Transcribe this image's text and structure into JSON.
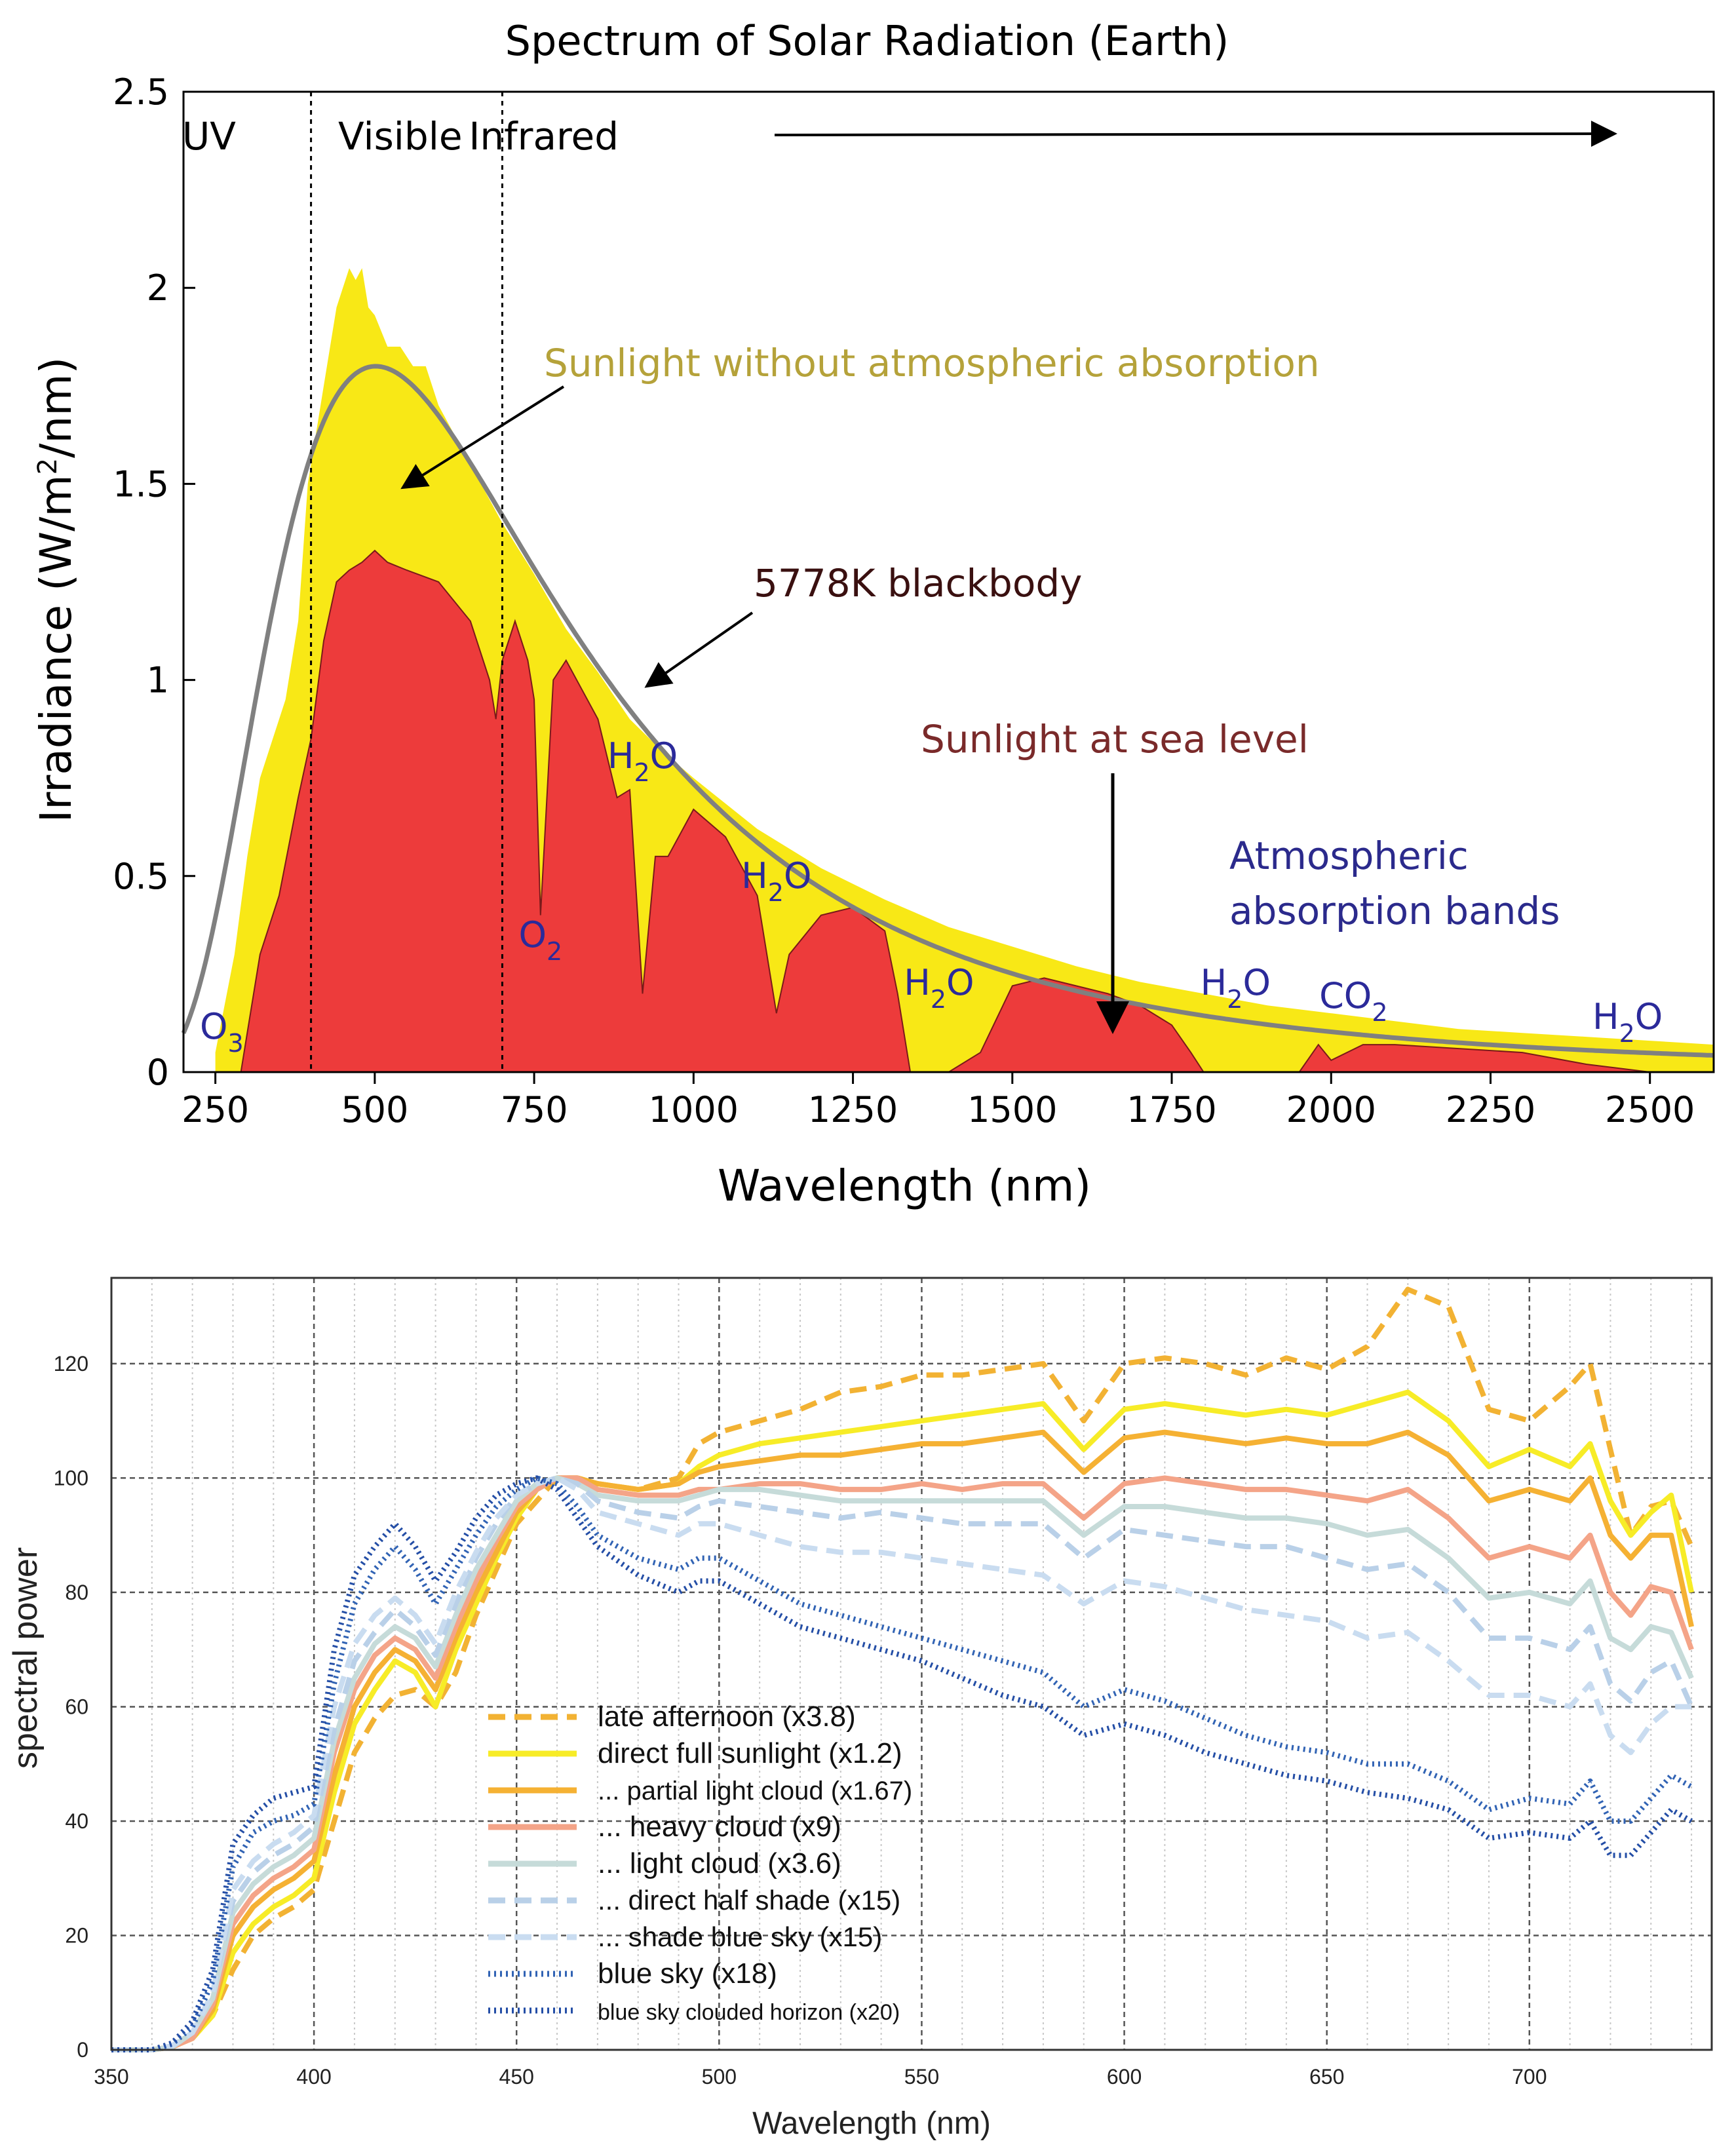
{
  "chart_data": [
    {
      "type": "area",
      "title": "Spectrum of Solar Radiation (Earth)",
      "xlabel": "Wavelength (nm)",
      "ylabel_parts": [
        "Irradiance (W/m",
        "2",
        "/nm)"
      ],
      "xlim": [
        200,
        2600
      ],
      "ylim": [
        0,
        2.5
      ],
      "xticks": [
        250,
        500,
        750,
        1000,
        1250,
        1500,
        1750,
        2000,
        2250,
        2500
      ],
      "yticks": [
        0,
        0.5,
        1,
        1.5,
        2,
        2.5
      ],
      "ytick_labels": [
        "0",
        "0.5",
        "1",
        "1.5",
        "2",
        "2.5"
      ],
      "region_dividers": [
        400,
        700
      ],
      "regions": [
        {
          "label": "UV",
          "x": 240
        },
        {
          "label": "Visible",
          "x": 540
        },
        {
          "label": "Infrared",
          "x": 765
        }
      ],
      "blackbody": {
        "label": "5778K blackbody",
        "temperature_K": 5778,
        "peak_irradiance": 1.8,
        "color": "#808080"
      },
      "series": [
        {
          "name": "Sunlight without atmospheric absorption",
          "color": "#f8e816",
          "x": [
            250,
            280,
            300,
            320,
            340,
            360,
            380,
            395,
            400,
            420,
            440,
            450,
            460,
            470,
            480,
            490,
            500,
            520,
            540,
            560,
            580,
            600,
            650,
            700,
            750,
            800,
            850,
            900,
            950,
            1000,
            1100,
            1200,
            1300,
            1400,
            1500,
            1600,
            1700,
            1800,
            1900,
            2000,
            2100,
            2200,
            2300,
            2400,
            2500,
            2600
          ],
          "y": [
            0.05,
            0.3,
            0.55,
            0.75,
            0.85,
            0.95,
            1.15,
            1.5,
            1.55,
            1.75,
            1.95,
            2.0,
            2.05,
            2.02,
            2.05,
            1.95,
            1.93,
            1.85,
            1.85,
            1.8,
            1.8,
            1.7,
            1.55,
            1.4,
            1.27,
            1.13,
            1.02,
            0.9,
            0.82,
            0.75,
            0.62,
            0.52,
            0.44,
            0.37,
            0.32,
            0.27,
            0.23,
            0.2,
            0.17,
            0.15,
            0.13,
            0.11,
            0.1,
            0.09,
            0.08,
            0.07
          ]
        },
        {
          "name": "Sunlight at sea level",
          "color": "#ed3b3b",
          "x": [
            290,
            300,
            320,
            350,
            380,
            400,
            420,
            440,
            460,
            480,
            500,
            520,
            550,
            600,
            650,
            680,
            690,
            700,
            720,
            740,
            750,
            760,
            780,
            800,
            850,
            880,
            900,
            920,
            940,
            960,
            1000,
            1050,
            1100,
            1130,
            1150,
            1200,
            1250,
            1300,
            1320,
            1340,
            1400,
            1450,
            1500,
            1550,
            1600,
            1650,
            1700,
            1750,
            1780,
            1800,
            1950,
            1980,
            2000,
            2050,
            2100,
            2200,
            2300,
            2400,
            2450,
            2500
          ],
          "y": [
            0,
            0.1,
            0.3,
            0.45,
            0.7,
            0.85,
            1.1,
            1.25,
            1.28,
            1.3,
            1.33,
            1.3,
            1.28,
            1.25,
            1.15,
            1.0,
            0.9,
            1.05,
            1.15,
            1.05,
            0.95,
            0.4,
            1.0,
            1.05,
            0.9,
            0.7,
            0.72,
            0.2,
            0.55,
            0.55,
            0.67,
            0.6,
            0.45,
            0.15,
            0.3,
            0.4,
            0.42,
            0.36,
            0.2,
            0,
            0,
            0.05,
            0.22,
            0.24,
            0.22,
            0.2,
            0.17,
            0.12,
            0.05,
            0,
            0,
            0.07,
            0.03,
            0.07,
            0.07,
            0.06,
            0.05,
            0.02,
            0.01,
            0
          ]
        }
      ],
      "annotations": {
        "sunlight_label": "Sunlight without atmospheric absorption",
        "blackbody_label": "5778K blackbody",
        "sea_level_label": "Sunlight at sea level",
        "bands_line1": "Atmospheric",
        "bands_line2": "absorption bands",
        "molecules": [
          {
            "base": "O",
            "sub": "3",
            "x": 260
          },
          {
            "base": "H",
            "sub": "2",
            "tail": "O",
            "x": 920
          },
          {
            "base": "O",
            "sub": "2",
            "x": 760
          },
          {
            "base": "H",
            "sub": "2",
            "tail": "O",
            "x": 1130
          },
          {
            "base": "H",
            "sub": "2",
            "tail": "O",
            "x": 1385
          },
          {
            "base": "H",
            "sub": "2",
            "tail": "O",
            "x": 1850
          },
          {
            "base": "CO",
            "sub": "2",
            "x": 2035
          },
          {
            "base": "H",
            "sub": "2",
            "tail": "O",
            "x": 2465
          }
        ]
      }
    },
    {
      "type": "line",
      "title": "",
      "xlabel": "Wavelength (nm)",
      "ylabel": "spectral power",
      "xlim": [
        350,
        745
      ],
      "ylim": [
        0,
        135
      ],
      "xticks": [
        350,
        400,
        450,
        500,
        550,
        600,
        650,
        700
      ],
      "yticks": [
        0,
        20,
        40,
        60,
        80,
        100,
        120
      ],
      "x": [
        350,
        360,
        365,
        370,
        375,
        380,
        385,
        390,
        395,
        400,
        405,
        410,
        415,
        420,
        425,
        430,
        435,
        440,
        445,
        450,
        455,
        460,
        465,
        470,
        480,
        490,
        495,
        500,
        510,
        520,
        530,
        540,
        550,
        560,
        570,
        580,
        590,
        600,
        610,
        620,
        630,
        640,
        650,
        660,
        670,
        680,
        690,
        700,
        710,
        715,
        720,
        725,
        730,
        735,
        740
      ],
      "series": [
        {
          "name": "late afternoon (x3.8)",
          "color": "#f2b233",
          "style": "dashed",
          "values": [
            0,
            0,
            0.5,
            2,
            6,
            14,
            20,
            23,
            25,
            28,
            40,
            52,
            58,
            62,
            63,
            60,
            66,
            76,
            84,
            92,
            96,
            100,
            100,
            99,
            98,
            100,
            106,
            108,
            110,
            112,
            115,
            116,
            118,
            118,
            119,
            120,
            110,
            120,
            121,
            120,
            118,
            121,
            119,
            123,
            133,
            130,
            112,
            110,
            116,
            120,
            105,
            90,
            95,
            96,
            88
          ]
        },
        {
          "name": "direct full sunlight (x1.2)",
          "color": "#f7ec27",
          "style": "solid",
          "values": [
            0,
            0,
            0.5,
            2,
            6,
            17,
            22,
            25,
            27,
            30,
            45,
            57,
            63,
            68,
            66,
            60,
            70,
            78,
            86,
            93,
            98,
            100,
            100,
            99,
            98,
            99,
            102,
            104,
            106,
            107,
            108,
            109,
            110,
            111,
            112,
            113,
            105,
            112,
            113,
            112,
            111,
            112,
            111,
            113,
            115,
            110,
            102,
            105,
            102,
            106,
            96,
            90,
            94,
            97,
            80
          ]
        },
        {
          "name": "... partial light cloud (x1.67)",
          "color": "#f5b133",
          "style": "solid",
          "values": [
            0,
            0,
            0.5,
            2,
            7,
            20,
            25,
            28,
            30,
            33,
            48,
            60,
            66,
            70,
            68,
            63,
            72,
            80,
            87,
            94,
            98,
            100,
            100,
            99,
            98,
            99,
            101,
            102,
            103,
            104,
            104,
            105,
            106,
            106,
            107,
            108,
            101,
            107,
            108,
            107,
            106,
            107,
            106,
            106,
            108,
            104,
            96,
            98,
            96,
            100,
            90,
            86,
            90,
            90,
            74
          ]
        },
        {
          "name": "... heavy cloud (x9)",
          "color": "#f4a488",
          "style": "solid",
          "values": [
            0,
            0,
            0.5,
            2,
            8,
            22,
            27,
            30,
            32,
            35,
            52,
            63,
            69,
            72,
            70,
            65,
            74,
            82,
            89,
            95,
            98,
            100,
            100,
            98,
            97,
            97,
            98,
            98,
            99,
            99,
            98,
            98,
            99,
            98,
            99,
            99,
            93,
            99,
            100,
            99,
            98,
            98,
            97,
            96,
            98,
            93,
            86,
            88,
            86,
            90,
            80,
            76,
            81,
            80,
            70
          ]
        },
        {
          "name": "... light cloud (x3.6)",
          "color": "#c6dbd9",
          "style": "solid",
          "values": [
            0,
            0,
            0.5,
            3,
            9,
            24,
            29,
            32,
            34,
            37,
            54,
            65,
            71,
            74,
            72,
            67,
            76,
            84,
            90,
            96,
            99,
            100,
            99,
            97,
            96,
            96,
            97,
            98,
            98,
            97,
            96,
            96,
            96,
            96,
            96,
            96,
            90,
            95,
            95,
            94,
            93,
            93,
            92,
            90,
            91,
            86,
            79,
            80,
            78,
            82,
            72,
            70,
            74,
            73,
            65
          ]
        },
        {
          "name": "... direct half shade (x15)",
          "color": "#b9d0e8",
          "style": "dashed",
          "values": [
            0,
            0,
            0.7,
            3,
            10,
            26,
            31,
            34,
            36,
            39,
            56,
            68,
            73,
            77,
            74,
            69,
            78,
            86,
            92,
            97,
            99,
            100,
            99,
            96,
            94,
            93,
            95,
            96,
            95,
            94,
            93,
            94,
            93,
            92,
            92,
            92,
            86,
            91,
            90,
            89,
            88,
            88,
            86,
            84,
            85,
            80,
            72,
            72,
            70,
            74,
            64,
            61,
            66,
            68,
            60
          ]
        },
        {
          "name": "... shade blue sky (x15)",
          "color": "#c9dcf0",
          "style": "dashed",
          "values": [
            0,
            0,
            0.7,
            3,
            10,
            28,
            33,
            36,
            38,
            41,
            60,
            71,
            76,
            79,
            76,
            71,
            80,
            87,
            93,
            97,
            99,
            100,
            98,
            94,
            92,
            90,
            92,
            92,
            90,
            88,
            87,
            87,
            86,
            85,
            84,
            83,
            78,
            82,
            81,
            79,
            77,
            76,
            75,
            72,
            73,
            68,
            62,
            62,
            60,
            64,
            55,
            52,
            57,
            60,
            60
          ]
        },
        {
          "name": "blue sky (x18)",
          "color": "#3163b4",
          "style": "dotted",
          "values": [
            0,
            0,
            1,
            4,
            12,
            32,
            38,
            40,
            41,
            43,
            64,
            78,
            84,
            88,
            84,
            78,
            84,
            90,
            95,
            98,
            100,
            99,
            95,
            90,
            86,
            84,
            86,
            86,
            82,
            78,
            76,
            74,
            72,
            70,
            68,
            66,
            60,
            63,
            61,
            58,
            55,
            53,
            52,
            50,
            50,
            47,
            42,
            44,
            43,
            47,
            40,
            40,
            44,
            48,
            46
          ]
        },
        {
          "name": "blue sky clouded horizon (x20)",
          "color": "#244ea6",
          "style": "dotted",
          "values": [
            0,
            0,
            1.2,
            5,
            14,
            36,
            41,
            44,
            45,
            46,
            70,
            83,
            88,
            92,
            88,
            82,
            87,
            93,
            97,
            99,
            100,
            98,
            93,
            88,
            83,
            80,
            82,
            82,
            78,
            74,
            72,
            70,
            68,
            65,
            62,
            60,
            55,
            57,
            55,
            52,
            50,
            48,
            47,
            45,
            44,
            42,
            37,
            38,
            37,
            40,
            34,
            34,
            38,
            42,
            40
          ]
        }
      ],
      "legend": [
        "late afternoon (x3.8)",
        "direct full sunlight (x1.2)",
        "... partial light cloud (x1.67)",
        "... heavy cloud (x9)",
        "... light cloud (x3.6)",
        "... direct half shade (x15)",
        "... shade blue sky (x15)",
        "blue sky (x18)",
        "blue sky clouded horizon (x20)"
      ]
    }
  ]
}
